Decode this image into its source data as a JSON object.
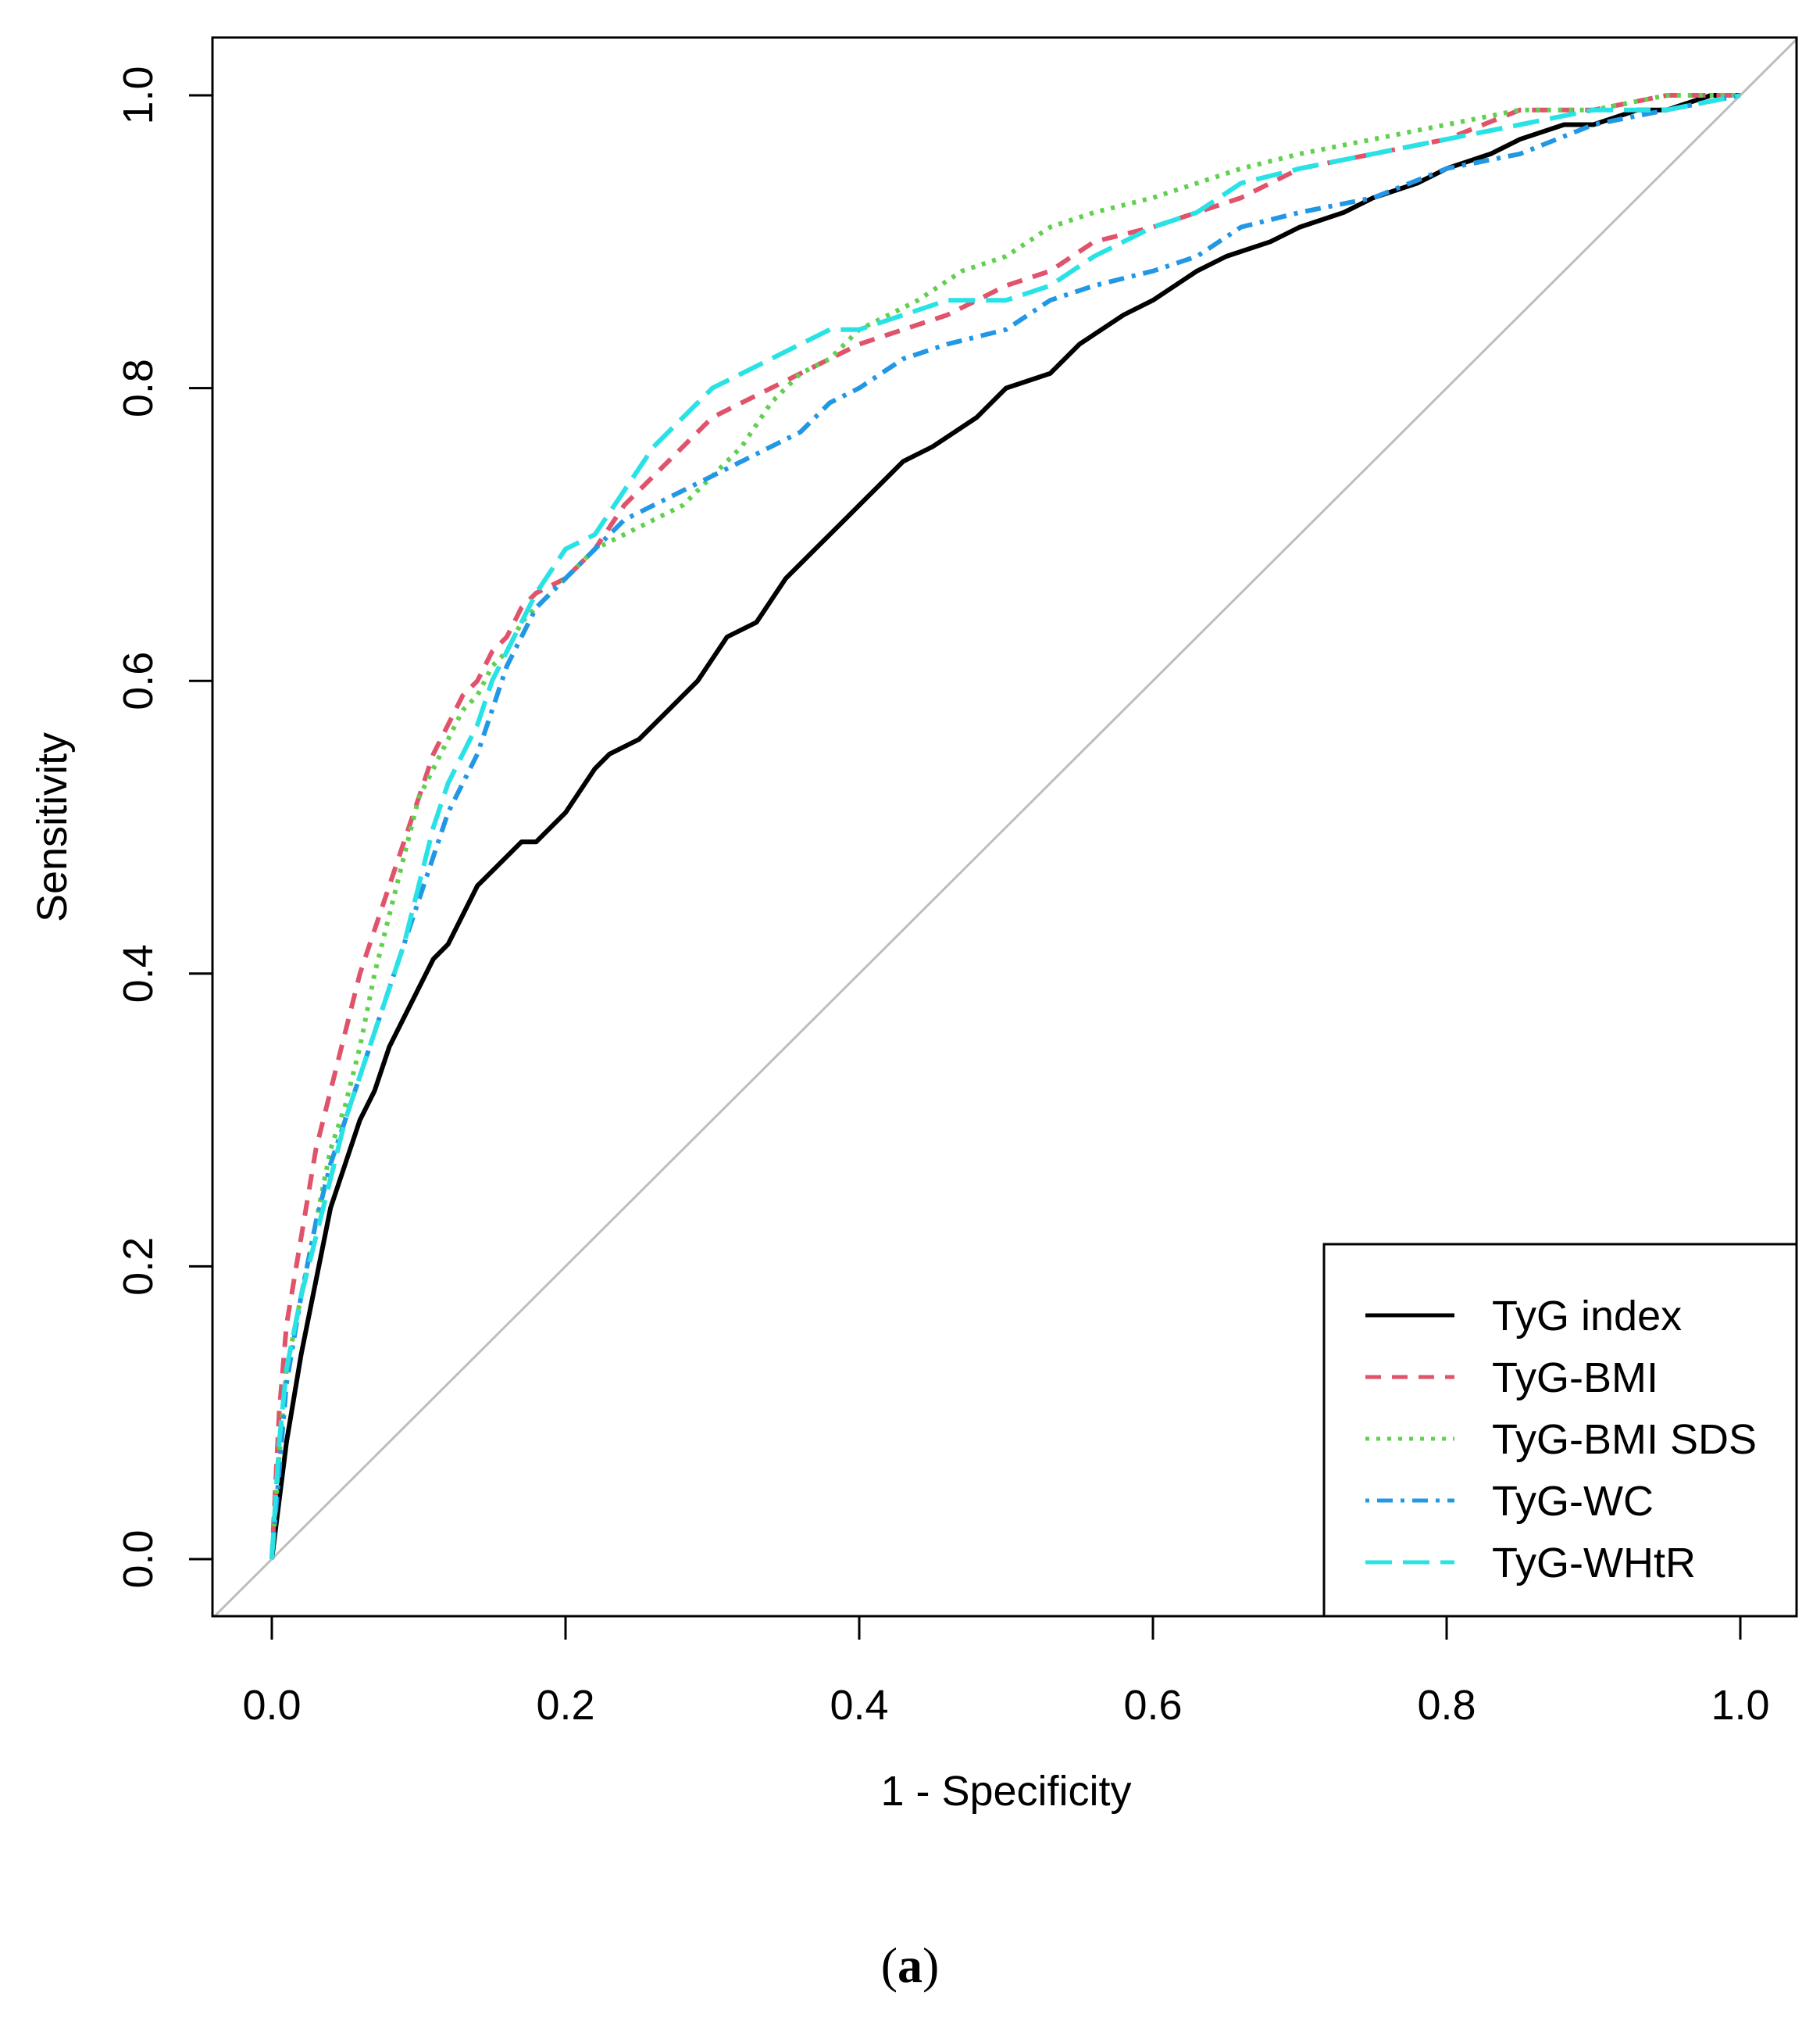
{
  "chart_data": {
    "type": "line",
    "title": "",
    "xlabel": "1 - Specificity",
    "ylabel": "Sensitivity",
    "xlim": [
      0.0,
      1.0
    ],
    "ylim": [
      0.0,
      1.0
    ],
    "xticks": [
      "0.0",
      "0.2",
      "0.4",
      "0.6",
      "0.8",
      "1.0"
    ],
    "yticks": [
      "0.0",
      "0.2",
      "0.4",
      "0.6",
      "0.8",
      "1.0"
    ],
    "grid": false,
    "legend_position": "bottom-right",
    "reference_line": {
      "name": "chance",
      "x": [
        0,
        1
      ],
      "y": [
        0,
        1
      ],
      "color": "#bebebe"
    },
    "series": [
      {
        "name": "TyG index",
        "color": "#000000",
        "dash": "solid",
        "x": [
          0,
          0.005,
          0.01,
          0.015,
          0.02,
          0.03,
          0.04,
          0.05,
          0.06,
          0.07,
          0.08,
          0.09,
          0.1,
          0.11,
          0.12,
          0.13,
          0.14,
          0.15,
          0.16,
          0.17,
          0.18,
          0.2,
          0.22,
          0.23,
          0.25,
          0.27,
          0.29,
          0.31,
          0.33,
          0.35,
          0.37,
          0.39,
          0.41,
          0.43,
          0.45,
          0.48,
          0.5,
          0.53,
          0.55,
          0.58,
          0.6,
          0.63,
          0.65,
          0.68,
          0.7,
          0.73,
          0.75,
          0.78,
          0.8,
          0.83,
          0.85,
          0.88,
          0.9,
          0.93,
          0.95,
          0.98,
          1.0
        ],
        "y": [
          0,
          0.04,
          0.08,
          0.11,
          0.14,
          0.19,
          0.24,
          0.27,
          0.3,
          0.32,
          0.35,
          0.37,
          0.39,
          0.41,
          0.42,
          0.44,
          0.46,
          0.47,
          0.48,
          0.49,
          0.49,
          0.51,
          0.54,
          0.55,
          0.56,
          0.58,
          0.6,
          0.63,
          0.64,
          0.67,
          0.69,
          0.71,
          0.73,
          0.75,
          0.76,
          0.78,
          0.8,
          0.81,
          0.83,
          0.85,
          0.86,
          0.88,
          0.89,
          0.9,
          0.91,
          0.92,
          0.93,
          0.94,
          0.95,
          0.96,
          0.97,
          0.98,
          0.98,
          0.99,
          0.99,
          1.0,
          1.0
        ]
      },
      {
        "name": "TyG-BMI",
        "color": "#df536b",
        "dash": "dashed",
        "x": [
          0,
          0.005,
          0.01,
          0.02,
          0.03,
          0.04,
          0.05,
          0.06,
          0.07,
          0.08,
          0.09,
          0.1,
          0.11,
          0.12,
          0.13,
          0.14,
          0.15,
          0.16,
          0.17,
          0.18,
          0.2,
          0.22,
          0.24,
          0.26,
          0.28,
          0.3,
          0.32,
          0.34,
          0.36,
          0.38,
          0.4,
          0.43,
          0.46,
          0.5,
          0.53,
          0.56,
          0.6,
          0.63,
          0.66,
          0.7,
          0.75,
          0.8,
          0.85,
          0.9,
          0.95,
          1.0
        ],
        "y": [
          0,
          0.1,
          0.16,
          0.22,
          0.28,
          0.32,
          0.36,
          0.4,
          0.43,
          0.46,
          0.49,
          0.52,
          0.55,
          0.57,
          0.59,
          0.6,
          0.62,
          0.63,
          0.65,
          0.66,
          0.67,
          0.69,
          0.72,
          0.74,
          0.76,
          0.78,
          0.79,
          0.8,
          0.81,
          0.82,
          0.83,
          0.84,
          0.85,
          0.87,
          0.88,
          0.9,
          0.91,
          0.92,
          0.93,
          0.95,
          0.96,
          0.97,
          0.99,
          0.99,
          1.0,
          1.0
        ]
      },
      {
        "name": "TyG-BMI SDS",
        "color": "#61d04f",
        "dash": "dotted",
        "x": [
          0,
          0.005,
          0.01,
          0.02,
          0.03,
          0.04,
          0.05,
          0.06,
          0.07,
          0.08,
          0.09,
          0.1,
          0.11,
          0.12,
          0.13,
          0.14,
          0.15,
          0.16,
          0.17,
          0.18,
          0.2,
          0.22,
          0.24,
          0.26,
          0.28,
          0.3,
          0.32,
          0.34,
          0.36,
          0.38,
          0.4,
          0.42,
          0.44,
          0.47,
          0.5,
          0.53,
          0.56,
          0.6,
          0.63,
          0.66,
          0.7,
          0.75,
          0.8,
          0.85,
          0.9,
          0.95,
          1.0
        ],
        "y": [
          0,
          0.07,
          0.13,
          0.18,
          0.23,
          0.28,
          0.31,
          0.35,
          0.4,
          0.44,
          0.48,
          0.52,
          0.54,
          0.56,
          0.58,
          0.59,
          0.61,
          0.62,
          0.64,
          0.65,
          0.67,
          0.69,
          0.7,
          0.71,
          0.72,
          0.74,
          0.76,
          0.79,
          0.81,
          0.82,
          0.84,
          0.85,
          0.86,
          0.88,
          0.89,
          0.91,
          0.92,
          0.93,
          0.94,
          0.95,
          0.96,
          0.97,
          0.98,
          0.99,
          0.99,
          1.0,
          1.0
        ]
      },
      {
        "name": "TyG-WC",
        "color": "#2297e6",
        "dash": "dotdash",
        "x": [
          0,
          0.005,
          0.01,
          0.02,
          0.03,
          0.04,
          0.05,
          0.06,
          0.07,
          0.08,
          0.09,
          0.1,
          0.11,
          0.12,
          0.13,
          0.14,
          0.15,
          0.16,
          0.17,
          0.18,
          0.2,
          0.22,
          0.24,
          0.26,
          0.28,
          0.3,
          0.32,
          0.34,
          0.36,
          0.38,
          0.4,
          0.43,
          0.46,
          0.5,
          0.53,
          0.56,
          0.6,
          0.63,
          0.66,
          0.7,
          0.75,
          0.8,
          0.85,
          0.9,
          0.95,
          1.0
        ],
        "y": [
          0,
          0.06,
          0.12,
          0.18,
          0.23,
          0.27,
          0.3,
          0.33,
          0.36,
          0.39,
          0.42,
          0.45,
          0.48,
          0.51,
          0.53,
          0.55,
          0.58,
          0.61,
          0.63,
          0.65,
          0.67,
          0.69,
          0.71,
          0.72,
          0.73,
          0.74,
          0.75,
          0.76,
          0.77,
          0.79,
          0.8,
          0.82,
          0.83,
          0.84,
          0.86,
          0.87,
          0.88,
          0.89,
          0.91,
          0.92,
          0.93,
          0.95,
          0.96,
          0.98,
          0.99,
          1.0
        ]
      },
      {
        "name": "TyG-WHtR",
        "color": "#28e2e5",
        "dash": "longdash",
        "x": [
          0,
          0.005,
          0.01,
          0.02,
          0.03,
          0.04,
          0.05,
          0.06,
          0.07,
          0.08,
          0.09,
          0.1,
          0.11,
          0.12,
          0.13,
          0.14,
          0.15,
          0.16,
          0.17,
          0.18,
          0.2,
          0.22,
          0.24,
          0.26,
          0.28,
          0.3,
          0.32,
          0.34,
          0.36,
          0.38,
          0.4,
          0.43,
          0.46,
          0.5,
          0.53,
          0.56,
          0.6,
          0.63,
          0.66,
          0.7,
          0.75,
          0.8,
          0.85,
          0.9,
          0.95,
          1.0
        ],
        "y": [
          0,
          0.08,
          0.13,
          0.18,
          0.22,
          0.26,
          0.3,
          0.33,
          0.36,
          0.39,
          0.42,
          0.46,
          0.5,
          0.53,
          0.55,
          0.57,
          0.6,
          0.62,
          0.64,
          0.66,
          0.69,
          0.7,
          0.73,
          0.76,
          0.78,
          0.8,
          0.81,
          0.82,
          0.83,
          0.84,
          0.84,
          0.85,
          0.86,
          0.86,
          0.87,
          0.89,
          0.91,
          0.92,
          0.94,
          0.95,
          0.96,
          0.97,
          0.98,
          0.99,
          0.99,
          1.0
        ]
      }
    ]
  },
  "caption": {
    "open": "(",
    "label": "a",
    "close": ")"
  }
}
